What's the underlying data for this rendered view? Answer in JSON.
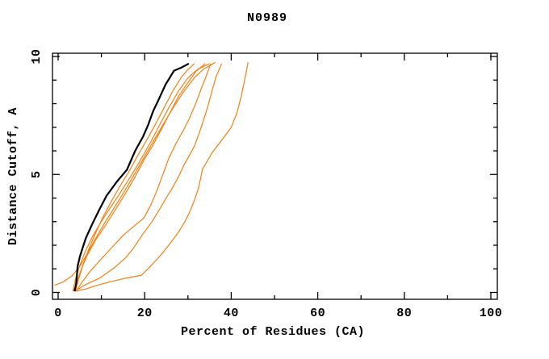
{
  "title": "N0989",
  "colors": {
    "background": "#FFFFFF",
    "frame": "#000000",
    "reference_line": "#000000",
    "model_line": "#F28011"
  },
  "chart_data": {
    "type": "line",
    "title": "N0989",
    "xlabel": "Percent of Residues (CA)",
    "ylabel": "Distance Cutoff, A",
    "xlim": [
      0,
      100
    ],
    "ylim": [
      0,
      10
    ],
    "x_ticks": [
      0,
      20,
      40,
      60,
      80,
      100
    ],
    "x_minor_ticks": [
      10,
      30,
      50,
      70,
      90
    ],
    "y_ticks": [
      0,
      5,
      10
    ],
    "y_minor_ticks": [
      1,
      2,
      3,
      4,
      6,
      7,
      8,
      9
    ],
    "grid": false,
    "legend": "none",
    "tick_style": "inward-mirrored-all-sides",
    "series": [
      {
        "name": "orange-line-1",
        "color": "#F28011",
        "stroke_width": 1.2,
        "points": [
          [
            4.0,
            0.05
          ],
          [
            4.8,
            0.6
          ],
          [
            5.8,
            1.2
          ],
          [
            7.0,
            1.8
          ],
          [
            8.6,
            2.5
          ],
          [
            10.4,
            3.2
          ],
          [
            12.4,
            3.9
          ],
          [
            14.6,
            4.6
          ],
          [
            16.6,
            5.2
          ],
          [
            18.4,
            5.8
          ],
          [
            20.3,
            6.4
          ],
          [
            22.4,
            7.1
          ],
          [
            24.4,
            7.8
          ],
          [
            26.4,
            8.5
          ],
          [
            28.4,
            9.1
          ],
          [
            30.0,
            9.45
          ],
          [
            31.5,
            9.7
          ]
        ]
      },
      {
        "name": "orange-line-2",
        "color": "#F28011",
        "stroke_width": 1.2,
        "points": [
          [
            3.6,
            0.05
          ],
          [
            4.4,
            0.5
          ],
          [
            5.4,
            1.0
          ],
          [
            6.8,
            1.6
          ],
          [
            8.6,
            2.2
          ],
          [
            10.8,
            2.8
          ],
          [
            13.2,
            3.5
          ],
          [
            15.6,
            4.2
          ],
          [
            17.8,
            4.9
          ],
          [
            19.8,
            5.6
          ],
          [
            21.8,
            6.2
          ],
          [
            23.8,
            6.9
          ],
          [
            25.8,
            7.6
          ],
          [
            27.8,
            8.3
          ],
          [
            30.0,
            8.9
          ],
          [
            32.0,
            9.4
          ],
          [
            34.0,
            9.7
          ]
        ]
      },
      {
        "name": "orange-line-3",
        "color": "#F28011",
        "stroke_width": 1.2,
        "points": [
          [
            4.2,
            0.05
          ],
          [
            5.4,
            0.4
          ],
          [
            7.2,
            0.85
          ],
          [
            9.6,
            1.35
          ],
          [
            12.4,
            1.9
          ],
          [
            15.2,
            2.45
          ],
          [
            17.8,
            2.85
          ],
          [
            19.8,
            3.15
          ],
          [
            21.4,
            3.7
          ],
          [
            22.8,
            4.3
          ],
          [
            24.2,
            5.0
          ],
          [
            25.6,
            5.7
          ],
          [
            27.2,
            6.3
          ],
          [
            28.9,
            6.85
          ],
          [
            30.4,
            7.4
          ],
          [
            31.8,
            8.0
          ],
          [
            33.2,
            8.7
          ],
          [
            34.3,
            9.2
          ],
          [
            35.3,
            9.7
          ]
        ]
      },
      {
        "name": "orange-line-4",
        "color": "#F28011",
        "stroke_width": 1.2,
        "points": [
          [
            3.4,
            0.05
          ],
          [
            4.0,
            0.55
          ],
          [
            5.0,
            1.15
          ],
          [
            6.3,
            1.75
          ],
          [
            7.9,
            2.35
          ],
          [
            9.8,
            2.95
          ],
          [
            11.9,
            3.55
          ],
          [
            14.1,
            4.15
          ],
          [
            16.2,
            4.75
          ],
          [
            18.2,
            5.35
          ],
          [
            20.1,
            5.95
          ],
          [
            21.9,
            6.55
          ],
          [
            23.6,
            7.15
          ],
          [
            25.5,
            7.8
          ],
          [
            27.7,
            8.5
          ],
          [
            30.0,
            9.1
          ],
          [
            32.2,
            9.45
          ],
          [
            35.0,
            9.7
          ]
        ]
      },
      {
        "name": "orange-line-5",
        "color": "#F28011",
        "stroke_width": 1.2,
        "points": [
          [
            -0.8,
            0.3
          ],
          [
            1.2,
            0.45
          ],
          [
            3.2,
            0.7
          ],
          [
            5.0,
            1.1
          ],
          [
            6.6,
            1.6
          ],
          [
            8.4,
            2.2
          ],
          [
            10.6,
            2.9
          ],
          [
            13.0,
            3.6
          ],
          [
            15.4,
            4.3
          ],
          [
            17.6,
            5.0
          ],
          [
            19.8,
            5.7
          ],
          [
            22.0,
            6.4
          ],
          [
            24.2,
            7.1
          ],
          [
            26.5,
            7.8
          ],
          [
            29.0,
            8.5
          ],
          [
            31.5,
            9.1
          ],
          [
            33.5,
            9.45
          ],
          [
            36.3,
            9.75
          ]
        ]
      },
      {
        "name": "orange-line-6",
        "color": "#F28011",
        "stroke_width": 1.2,
        "points": [
          [
            3.8,
            0.05
          ],
          [
            6.0,
            0.3
          ],
          [
            9.7,
            0.62
          ],
          [
            13.0,
            1.05
          ],
          [
            15.5,
            1.45
          ],
          [
            17.3,
            1.85
          ],
          [
            19.5,
            2.45
          ],
          [
            21.7,
            3.0
          ],
          [
            23.2,
            3.45
          ],
          [
            24.8,
            3.95
          ],
          [
            26.3,
            4.4
          ],
          [
            27.8,
            4.9
          ],
          [
            29.2,
            5.45
          ],
          [
            30.0,
            5.7
          ],
          [
            31.5,
            6.2
          ],
          [
            32.6,
            6.75
          ],
          [
            33.6,
            7.3
          ],
          [
            34.6,
            7.9
          ],
          [
            35.5,
            8.5
          ],
          [
            36.4,
            9.1
          ],
          [
            37.8,
            9.7
          ]
        ]
      },
      {
        "name": "orange-line-7",
        "color": "#F28011",
        "stroke_width": 1.2,
        "points": [
          [
            4.0,
            0.05
          ],
          [
            6.5,
            0.15
          ],
          [
            9.0,
            0.3
          ],
          [
            12.0,
            0.45
          ],
          [
            15.5,
            0.6
          ],
          [
            19.2,
            0.72
          ],
          [
            21.0,
            1.05
          ],
          [
            22.8,
            1.4
          ],
          [
            24.5,
            1.75
          ],
          [
            26.2,
            2.15
          ],
          [
            27.8,
            2.55
          ],
          [
            29.3,
            3.0
          ],
          [
            30.5,
            3.45
          ],
          [
            31.5,
            3.9
          ],
          [
            32.4,
            4.4
          ],
          [
            33.0,
            4.9
          ],
          [
            33.3,
            5.2
          ],
          [
            35.5,
            5.9
          ],
          [
            38.0,
            6.5
          ],
          [
            40.0,
            7.0
          ],
          [
            41.3,
            7.6
          ],
          [
            42.3,
            8.3
          ],
          [
            43.1,
            9.0
          ],
          [
            43.9,
            9.75
          ]
        ]
      },
      {
        "name": "black-thick-line",
        "color": "#000000",
        "stroke_width": 2.2,
        "points": [
          [
            3.8,
            0.05
          ],
          [
            4.2,
            0.4
          ],
          [
            4.5,
            1.1
          ],
          [
            5.0,
            1.5
          ],
          [
            5.5,
            1.8
          ],
          [
            6.4,
            2.3
          ],
          [
            7.9,
            2.9
          ],
          [
            9.5,
            3.5
          ],
          [
            11.2,
            4.1
          ],
          [
            13.6,
            4.7
          ],
          [
            15.9,
            5.2
          ],
          [
            17.8,
            6.0
          ],
          [
            19.6,
            6.6
          ],
          [
            20.8,
            7.1
          ],
          [
            22.0,
            7.7
          ],
          [
            23.3,
            8.2
          ],
          [
            24.8,
            8.8
          ],
          [
            26.8,
            9.4
          ],
          [
            28.7,
            9.55
          ],
          [
            30.2,
            9.7
          ]
        ]
      }
    ]
  }
}
